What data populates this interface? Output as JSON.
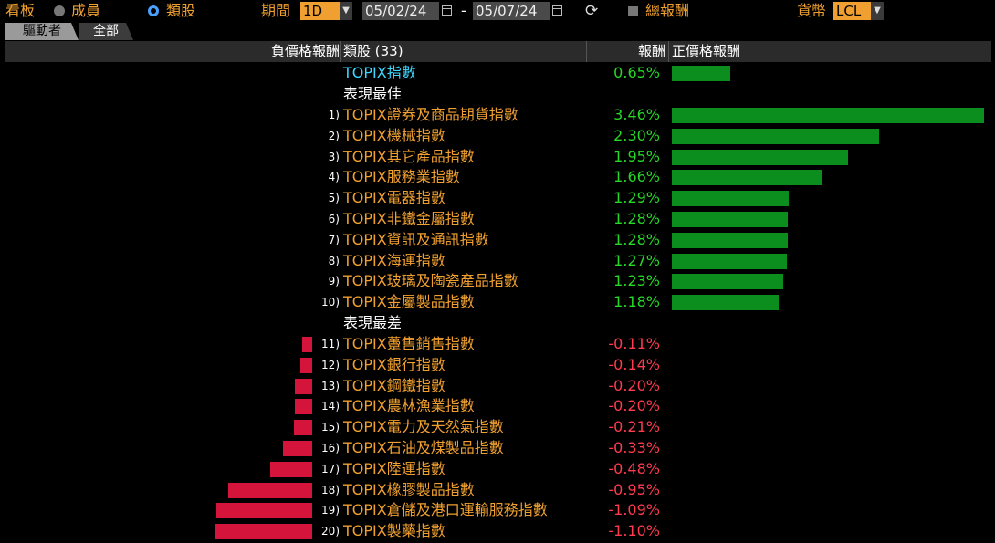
{
  "toolbar": {
    "view_label": "看板",
    "members_label": "成員",
    "sectors_label": "類股",
    "period_label": "期間",
    "period_value": "1D",
    "start_date": "05/02/24",
    "date_separator": "-",
    "end_date": "05/07/24",
    "total_return_label": "總報酬",
    "currency_label": "貨幣",
    "currency_value": "LCL"
  },
  "tabs": [
    {
      "label": "驅動者",
      "active": true
    },
    {
      "label": "全部",
      "active": false
    }
  ],
  "header": {
    "negative_label": "負價格報酬",
    "sector_label": "類股 (33)",
    "return_label": "報酬",
    "positive_label": "正價格報酬"
  },
  "index_row": {
    "name": "TOPIX指數",
    "return": "0.65%",
    "value": 0.65
  },
  "best_label": "表現最佳",
  "worst_label": "表現最差",
  "best": [
    {
      "rank": "1)",
      "name": "TOPIX證券及商品期貨指數",
      "return": "3.46%",
      "value": 3.46
    },
    {
      "rank": "2)",
      "name": "TOPIX機械指數",
      "return": "2.30%",
      "value": 2.3
    },
    {
      "rank": "3)",
      "name": "TOPIX其它產品指數",
      "return": "1.95%",
      "value": 1.95
    },
    {
      "rank": "4)",
      "name": "TOPIX服務業指數",
      "return": "1.66%",
      "value": 1.66
    },
    {
      "rank": "5)",
      "name": "TOPIX電器指數",
      "return": "1.29%",
      "value": 1.29
    },
    {
      "rank": "6)",
      "name": "TOPIX非鐵金屬指數",
      "return": "1.28%",
      "value": 1.28
    },
    {
      "rank": "7)",
      "name": "TOPIX資訊及通訊指數",
      "return": "1.28%",
      "value": 1.28
    },
    {
      "rank": "8)",
      "name": "TOPIX海運指數",
      "return": "1.27%",
      "value": 1.27
    },
    {
      "rank": "9)",
      "name": "TOPIX玻璃及陶瓷產品指數",
      "return": "1.23%",
      "value": 1.23
    },
    {
      "rank": "10)",
      "name": "TOPIX金屬製品指數",
      "return": "1.18%",
      "value": 1.18
    }
  ],
  "worst": [
    {
      "rank": "11)",
      "name": "TOPIX躉售銷售指數",
      "return": "-0.11%",
      "value": -0.11
    },
    {
      "rank": "12)",
      "name": "TOPIX銀行指數",
      "return": "-0.14%",
      "value": -0.14
    },
    {
      "rank": "13)",
      "name": "TOPIX鋼鐵指數",
      "return": "-0.20%",
      "value": -0.2
    },
    {
      "rank": "14)",
      "name": "TOPIX農林漁業指數",
      "return": "-0.20%",
      "value": -0.2
    },
    {
      "rank": "15)",
      "name": "TOPIX電力及天然氣指數",
      "return": "-0.21%",
      "value": -0.21
    },
    {
      "rank": "16)",
      "name": "TOPIX石油及煤製品指數",
      "return": "-0.33%",
      "value": -0.33
    },
    {
      "rank": "17)",
      "name": "TOPIX陸運指數",
      "return": "-0.48%",
      "value": -0.48
    },
    {
      "rank": "18)",
      "name": "TOPIX橡膠製品指數",
      "return": "-0.95%",
      "value": -0.95
    },
    {
      "rank": "19)",
      "name": "TOPIX倉儲及港口運輸服務指數",
      "return": "-1.09%",
      "value": -1.09
    },
    {
      "rank": "20)",
      "name": "TOPIX製藥指數",
      "return": "-1.10%",
      "value": -1.1
    }
  ],
  "colors": {
    "accent": "#f0a030",
    "positive": "#27d827",
    "negative": "#ff3b4f",
    "positive_bar": "#0b8e1d",
    "negative_bar": "#d4143a",
    "index_name": "#3ad8ff"
  }
}
